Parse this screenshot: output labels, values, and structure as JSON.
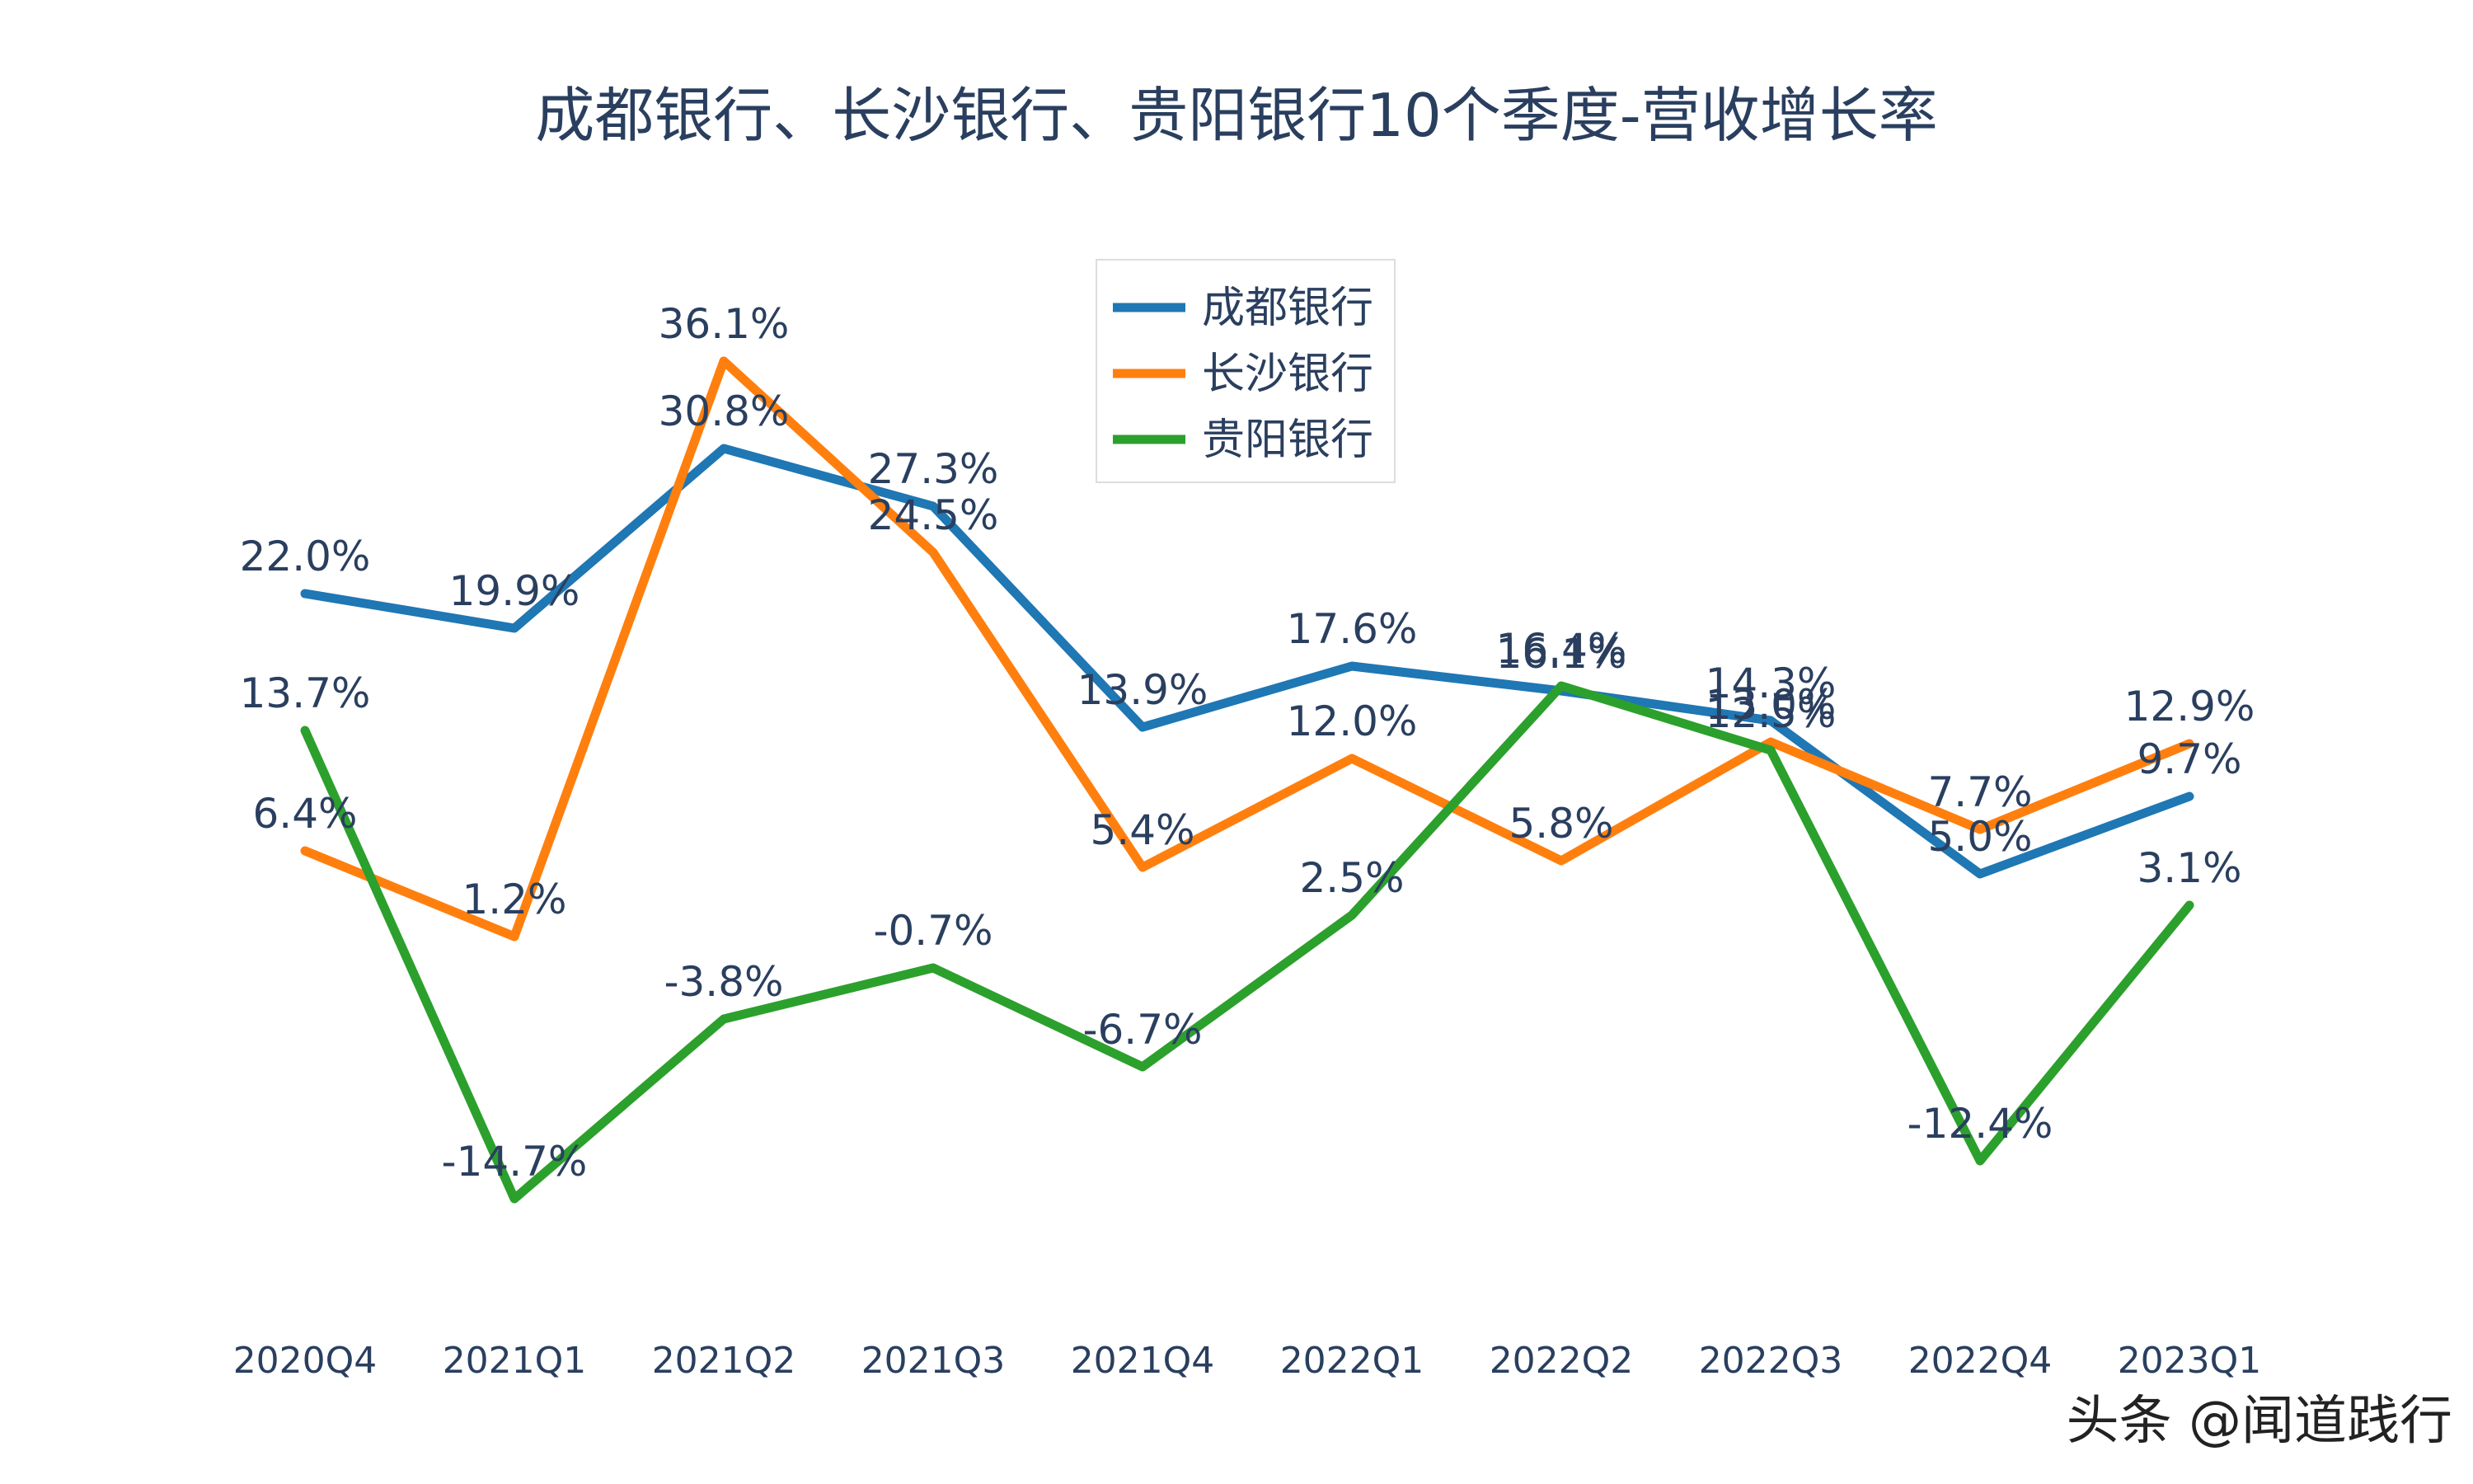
{
  "chart_data": {
    "type": "line",
    "title": "成都银行、长沙银行、贵阳银行10个季度-营收增长率",
    "xlabel": "",
    "ylabel": "",
    "categories": [
      "2020Q4",
      "2021Q1",
      "2021Q2",
      "2021Q3",
      "2021Q4",
      "2022Q1",
      "2022Q2",
      "2022Q3",
      "2022Q4",
      "2023Q1"
    ],
    "ylim": [
      -20,
      40
    ],
    "grid": false,
    "legend_position": "top-center",
    "series": [
      {
        "name": "成都银行",
        "color": "#1f77b4",
        "values": [
          22.0,
          19.9,
          30.8,
          27.3,
          13.9,
          17.6,
          16.1,
          14.3,
          5.0,
          9.7
        ],
        "labels": [
          "22.0%",
          "19.9%",
          "30.8%",
          "27.3%",
          "13.9%",
          "17.6%",
          "16.1%",
          "14.3%",
          "5.0%",
          "9.7%"
        ]
      },
      {
        "name": "长沙银行",
        "color": "#ff7f0e",
        "values": [
          6.4,
          1.2,
          36.1,
          24.5,
          5.4,
          12.0,
          5.8,
          13.0,
          7.7,
          12.9
        ],
        "labels": [
          "6.4%",
          "1.2%",
          "36.1%",
          "24.5%",
          "5.4%",
          "12.0%",
          "5.8%",
          "13.0%",
          "7.7%",
          "12.9%"
        ]
      },
      {
        "name": "贵阳银行",
        "color": "#2ca02c",
        "values": [
          13.7,
          -14.7,
          -3.8,
          -0.7,
          -6.7,
          2.5,
          16.4,
          12.5,
          -12.4,
          3.1
        ],
        "labels": [
          "13.7%",
          "-14.7%",
          "-3.8%",
          "-0.7%",
          "-6.7%",
          "2.5%",
          "16.4%",
          "12.5%",
          "-12.4%",
          "3.1%"
        ]
      }
    ]
  },
  "watermark": "头条 @闻道践行"
}
